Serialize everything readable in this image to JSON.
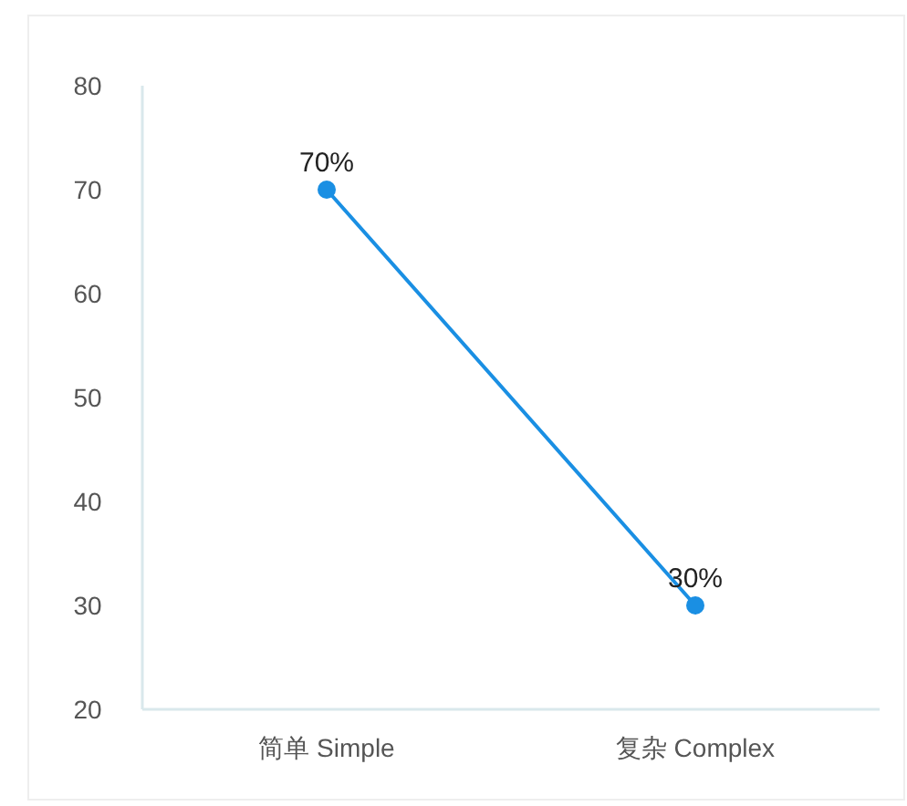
{
  "chart_data": {
    "type": "line",
    "categories": [
      "简单 Simple",
      "复杂 Complex"
    ],
    "values": [
      70,
      30
    ],
    "value_labels": [
      "70%",
      "30%"
    ],
    "color": "#1a8fe3",
    "marker": "circle",
    "line_style": "solid",
    "ylim": [
      20,
      80
    ],
    "yticks": [
      20,
      30,
      40,
      50,
      60,
      70,
      80
    ],
    "grid": false
  }
}
